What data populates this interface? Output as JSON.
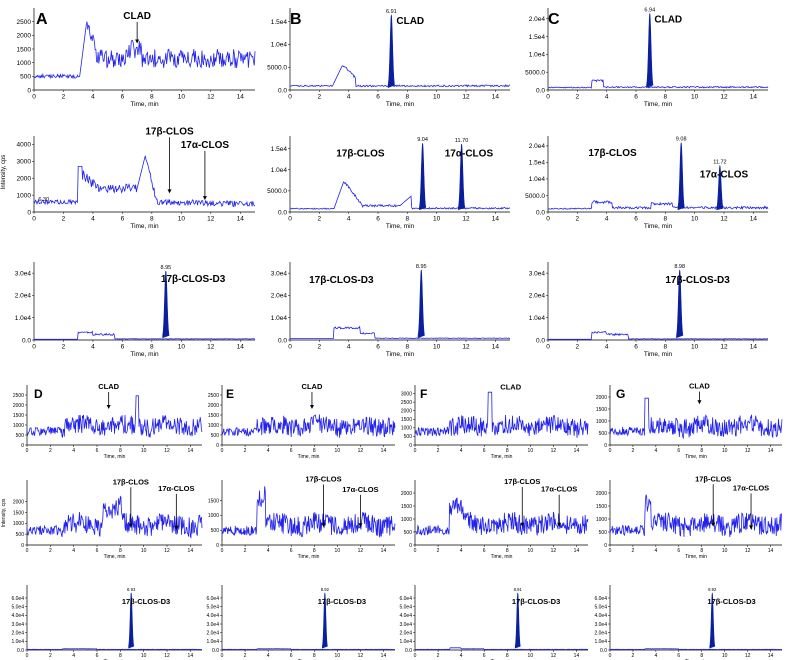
{
  "chart_data": {
    "type": "line",
    "x_axis_label": "Time, min",
    "y_axis_label": "Intensity, cps",
    "x_ticks": [
      0,
      2,
      4,
      6,
      8,
      10,
      12,
      14
    ],
    "xlim": [
      0,
      15
    ],
    "panel_letters": [
      "A",
      "B",
      "C",
      "D",
      "E",
      "F",
      "G"
    ],
    "panels": [
      {
        "id": "A-1",
        "letter": "A",
        "ylim": [
          0,
          3000
        ],
        "y_ticks": [
          "0",
          "500",
          "1000",
          "1500",
          "2000",
          "2500"
        ],
        "y_tick_values": [
          0,
          500,
          1000,
          1500,
          2000,
          2500
        ],
        "profile": "noisy-a1",
        "labels": [
          {
            "text": "CLAD",
            "x": 7.0,
            "y": 2600,
            "arrow_to": 1700
          }
        ]
      },
      {
        "id": "A-2",
        "letter": "",
        "ylim": [
          0,
          4500
        ],
        "y_ticks": [
          "0",
          "1000",
          "2000",
          "3000",
          "4000"
        ],
        "y_tick_values": [
          0,
          1000,
          2000,
          3000,
          4000
        ],
        "profile": "noisy-a2",
        "rt_label": {
          "text": "6.30",
          "x": 0.3,
          "y": 650
        },
        "labels": [
          {
            "text": "17β-CLOS",
            "x": 9.2,
            "y": 4600,
            "arrow_to": 1100
          },
          {
            "text": "17α-CLOS",
            "x": 11.6,
            "y": 3800,
            "arrow_to": 700
          }
        ]
      },
      {
        "id": "A-3",
        "letter": "",
        "ylim": [
          0,
          35000
        ],
        "y_ticks": [
          "0.0",
          "1.0e4",
          "2.0e4",
          "3.0e4"
        ],
        "y_tick_values": [
          0,
          10000,
          20000,
          30000
        ],
        "profile": "d3",
        "peaks": [
          {
            "rt": 8.95,
            "height": 31000,
            "label": "8.95"
          }
        ],
        "labels": [
          {
            "text": "17β-CLOS-D3",
            "x": 10.8,
            "y": 26000
          }
        ]
      },
      {
        "id": "B-1",
        "letter": "B",
        "ylim": [
          0,
          18000
        ],
        "y_ticks": [
          "0.0",
          "5000.0",
          "1.0e4",
          "1.5e4"
        ],
        "y_tick_values": [
          0,
          5000,
          10000,
          15000
        ],
        "profile": "b1",
        "peaks": [
          {
            "rt": 6.91,
            "height": 16500,
            "label": "6.91"
          }
        ],
        "labels": [
          {
            "text": "CLAD",
            "x": 8.2,
            "y": 14500
          }
        ]
      },
      {
        "id": "B-2",
        "letter": "",
        "ylim": [
          0,
          18000
        ],
        "y_ticks": [
          "0.0",
          "5000.0",
          "1.0e4",
          "1.5e4"
        ],
        "y_tick_values": [
          0,
          5000,
          10000,
          15000
        ],
        "profile": "b2",
        "peaks": [
          {
            "rt": 9.04,
            "height": 16300,
            "label": "9.04"
          },
          {
            "rt": 11.7,
            "height": 16100,
            "label": "11.70"
          }
        ],
        "labels": [
          {
            "text": "17β-CLOS",
            "x": 4.8,
            "y": 13200
          },
          {
            "text": "17α-CLOS",
            "x": 12.2,
            "y": 13200
          }
        ]
      },
      {
        "id": "B-3",
        "letter": "",
        "ylim": [
          0,
          35000
        ],
        "y_ticks": [
          "0.0",
          "1.0e4",
          "2.0e4",
          "3.0e4"
        ],
        "y_tick_values": [
          0,
          10000,
          20000,
          30000
        ],
        "profile": "b3",
        "peaks": [
          {
            "rt": 8.95,
            "height": 31500,
            "label": "8.95"
          }
        ],
        "labels": [
          {
            "text": "17β-CLOS-D3",
            "x": 3.5,
            "y": 25500
          }
        ]
      },
      {
        "id": "C-1",
        "letter": "C",
        "ylim": [
          0,
          23000
        ],
        "y_ticks": [
          "0.0",
          "5000.0",
          "1.0e4",
          "1.5e4",
          "2.0e4"
        ],
        "y_tick_values": [
          0,
          5000,
          10000,
          15000,
          20000
        ],
        "profile": "c1",
        "peaks": [
          {
            "rt": 6.94,
            "height": 21500,
            "label": "6.94"
          }
        ],
        "labels": [
          {
            "text": "CLAD",
            "x": 8.2,
            "y": 19000
          }
        ]
      },
      {
        "id": "C-2",
        "letter": "",
        "ylim": [
          0,
          23000
        ],
        "y_ticks": [
          "0.0",
          "5000.0",
          "1.0e4",
          "1.5e4",
          "2.0e4"
        ],
        "y_tick_values": [
          0,
          5000,
          10000,
          15000,
          20000
        ],
        "profile": "c2",
        "peaks": [
          {
            "rt": 9.08,
            "height": 21000,
            "label": "9.08"
          },
          {
            "rt": 11.72,
            "height": 14000,
            "label": "11.72"
          }
        ],
        "labels": [
          {
            "text": "17β-CLOS",
            "x": 4.4,
            "y": 17000
          },
          {
            "text": "17α-CLOS",
            "x": 12.0,
            "y": 10500
          }
        ]
      },
      {
        "id": "C-3",
        "letter": "",
        "ylim": [
          0,
          35000
        ],
        "y_ticks": [
          "0.0",
          "1.0e4",
          "2.0e4",
          "3.0e4"
        ],
        "y_tick_values": [
          0,
          10000,
          20000,
          30000
        ],
        "profile": "c3",
        "peaks": [
          {
            "rt": 8.98,
            "height": 31500,
            "label": "8.98"
          }
        ],
        "labels": [
          {
            "text": "17β-CLOS-D3",
            "x": 10.2,
            "y": 25500
          }
        ]
      },
      {
        "id": "D-1",
        "letter": "D",
        "ylim": [
          0,
          3000
        ],
        "y_ticks": [
          "0",
          "500",
          "1000",
          "1500",
          "2000",
          "2500"
        ],
        "y_tick_values": [
          0,
          500,
          1000,
          1500,
          2000,
          2500
        ],
        "profile": "noisy-d1",
        "labels": [
          {
            "text": "CLAD",
            "x": 7.0,
            "y": 2800,
            "arrow_to": 1800
          }
        ]
      },
      {
        "id": "D-2",
        "letter": "",
        "ylim": [
          0,
          3000
        ],
        "y_ticks": [
          "0",
          "500",
          "1000",
          "1500",
          "2000"
        ],
        "y_tick_values": [
          0,
          500,
          1000,
          1500,
          2000
        ],
        "profile": "noisy-d2",
        "labels": [
          {
            "text": "17β-CLOS",
            "x": 8.9,
            "y": 2800,
            "arrow_to": 800
          },
          {
            "text": "17α-CLOS",
            "x": 12.8,
            "y": 2500,
            "arrow_to": 700
          }
        ]
      },
      {
        "id": "D-3",
        "letter": "",
        "ylim": [
          0,
          75000
        ],
        "y_ticks": [
          "0.0",
          "1.0e4",
          "2.0e4",
          "3.0e4",
          "4.0e4",
          "5.0e4",
          "6.0e4"
        ],
        "y_tick_values": [
          0,
          10000,
          20000,
          30000,
          40000,
          50000,
          60000
        ],
        "profile": "d3b",
        "peaks": [
          {
            "rt": 8.93,
            "height": 66000,
            "label": "8.93"
          }
        ],
        "labels": [
          {
            "text": "17β-CLOS-D3",
            "x": 10.2,
            "y": 53000
          }
        ]
      },
      {
        "id": "E-1",
        "letter": "E",
        "ylim": [
          0,
          3000
        ],
        "y_ticks": [
          "0",
          "500",
          "1000",
          "1500",
          "2000",
          "2500"
        ],
        "y_tick_values": [
          0,
          500,
          1000,
          1500,
          2000,
          2500
        ],
        "profile": "noisy-e1",
        "labels": [
          {
            "text": "CLAD",
            "x": 7.8,
            "y": 2800,
            "arrow_to": 1800
          }
        ]
      },
      {
        "id": "E-2",
        "letter": "",
        "ylim": [
          0,
          2200
        ],
        "y_ticks": [
          "0",
          "500",
          "1000",
          "1500"
        ],
        "y_tick_values": [
          0,
          500,
          1000,
          1500
        ],
        "profile": "noisy-e2",
        "labels": [
          {
            "text": "17β-CLOS",
            "x": 8.8,
            "y": 2150,
            "arrow_to": 600
          },
          {
            "text": "17α-CLOS",
            "x": 12.0,
            "y": 1800,
            "arrow_to": 600
          }
        ]
      },
      {
        "id": "E-3",
        "letter": "",
        "ylim": [
          0,
          75000
        ],
        "y_ticks": [
          "0.0",
          "1.0e4",
          "2.0e4",
          "3.0e4",
          "4.0e4",
          "5.0e4",
          "6.0e4"
        ],
        "y_tick_values": [
          0,
          10000,
          20000,
          30000,
          40000,
          50000,
          60000
        ],
        "profile": "d3b",
        "peaks": [
          {
            "rt": 8.92,
            "height": 66000,
            "label": "8.92"
          }
        ],
        "labels": [
          {
            "text": "17β-CLOS-D3",
            "x": 10.4,
            "y": 53000
          }
        ]
      },
      {
        "id": "F-1",
        "letter": "F",
        "ylim": [
          0,
          3500
        ],
        "y_ticks": [
          "0",
          "500",
          "1000",
          "1500",
          "2000",
          "2500",
          "3000"
        ],
        "y_tick_values": [
          0,
          500,
          1000,
          1500,
          2000,
          2500,
          3000
        ],
        "profile": "noisy-f1",
        "labels": [
          {
            "text": "CLAD",
            "x": 8.3,
            "y": 3250
          }
        ]
      },
      {
        "id": "F-2",
        "letter": "",
        "ylim": [
          0,
          2500
        ],
        "y_ticks": [
          "0",
          "500",
          "1000",
          "1500",
          "2000"
        ],
        "y_tick_values": [
          0,
          500,
          1000,
          1500,
          2000
        ],
        "profile": "noisy-f2",
        "labels": [
          {
            "text": "17β-CLOS",
            "x": 9.3,
            "y": 2350,
            "arrow_to": 700
          },
          {
            "text": "17α-CLOS",
            "x": 12.5,
            "y": 2050,
            "arrow_to": 700
          }
        ]
      },
      {
        "id": "F-3",
        "letter": "",
        "ylim": [
          0,
          75000
        ],
        "y_ticks": [
          "0.0",
          "1.0e4",
          "2.0e4",
          "3.0e4",
          "4.0e4",
          "5.0e4",
          "6.0e4"
        ],
        "y_tick_values": [
          0,
          10000,
          20000,
          30000,
          40000,
          50000,
          60000
        ],
        "profile": "d3c",
        "peaks": [
          {
            "rt": 8.91,
            "height": 66000,
            "label": "8.91"
          }
        ],
        "labels": [
          {
            "text": "17β-CLOS-D3",
            "x": 10.5,
            "y": 53000
          }
        ]
      },
      {
        "id": "G-1",
        "letter": "G",
        "ylim": [
          0,
          2500
        ],
        "y_ticks": [
          "0",
          "500",
          "1000",
          "1500",
          "2000"
        ],
        "y_tick_values": [
          0,
          500,
          1000,
          1500,
          2000
        ],
        "profile": "noisy-g1",
        "labels": [
          {
            "text": "CLAD",
            "x": 7.8,
            "y": 2350,
            "arrow_to": 1700
          }
        ]
      },
      {
        "id": "G-2",
        "letter": "",
        "ylim": [
          0,
          2500
        ],
        "y_ticks": [
          "0",
          "500",
          "1000",
          "1500",
          "2000"
        ],
        "y_tick_values": [
          0,
          500,
          1000,
          1500,
          2000
        ],
        "profile": "noisy-g2",
        "labels": [
          {
            "text": "17β-CLOS",
            "x": 9.0,
            "y": 2450,
            "arrow_to": 700
          },
          {
            "text": "17α-CLOS",
            "x": 12.3,
            "y": 2100,
            "arrow_to": 600
          }
        ]
      },
      {
        "id": "G-3",
        "letter": "",
        "ylim": [
          0,
          75000
        ],
        "y_ticks": [
          "0.0",
          "1.0e4",
          "2.0e4",
          "3.0e4",
          "4.0e4",
          "5.0e4",
          "6.0e4"
        ],
        "y_tick_values": [
          0,
          10000,
          20000,
          30000,
          40000,
          50000,
          60000
        ],
        "profile": "d3b",
        "peaks": [
          {
            "rt": 8.92,
            "height": 66000,
            "label": "8.92"
          }
        ],
        "labels": [
          {
            "text": "17β-CLOS-D3",
            "x": 10.6,
            "y": 53000
          }
        ]
      }
    ]
  },
  "colors": {
    "trace": "#2222ee",
    "peak": "#0a1f9e",
    "axis": "#000000"
  }
}
